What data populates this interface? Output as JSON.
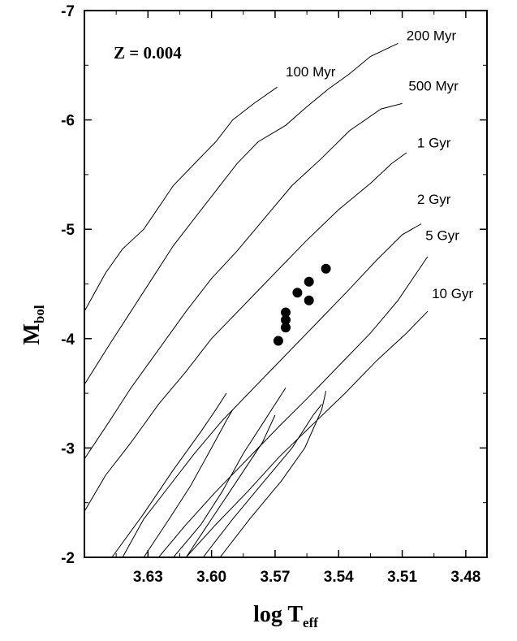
{
  "chart_data": {
    "type": "line",
    "title": "",
    "annotation": "Z = 0.004",
    "xlabel": {
      "main": "log T",
      "sub": "eff"
    },
    "ylabel": {
      "main": "M",
      "sub": "bol"
    },
    "xlim": [
      3.66,
      3.47
    ],
    "ylim": [
      -2,
      -7
    ],
    "x_ticks": [
      {
        "value": 3.63,
        "label": "3.63"
      },
      {
        "value": 3.6,
        "label": "3.60"
      },
      {
        "value": 3.57,
        "label": "3.57"
      },
      {
        "value": 3.54,
        "label": "3.54"
      },
      {
        "value": 3.51,
        "label": "3.51"
      },
      {
        "value": 3.48,
        "label": "3.48"
      }
    ],
    "y_ticks": [
      {
        "value": -2,
        "label": "-2"
      },
      {
        "value": -3,
        "label": "-3"
      },
      {
        "value": -4,
        "label": "-4"
      },
      {
        "value": -5,
        "label": "-5"
      },
      {
        "value": -6,
        "label": "-6"
      },
      {
        "value": -7,
        "label": "-7"
      }
    ],
    "series": [
      {
        "name": "100 Myr",
        "label": "100 Myr",
        "label_at": [
          3.565,
          -6.4
        ],
        "points": [
          [
            3.66,
            -4.25
          ],
          [
            3.65,
            -4.6
          ],
          [
            3.642,
            -4.82
          ],
          [
            3.632,
            -5.0
          ],
          [
            3.625,
            -5.2
          ],
          [
            3.618,
            -5.4
          ],
          [
            3.608,
            -5.6
          ],
          [
            3.598,
            -5.8
          ],
          [
            3.59,
            -6.0
          ],
          [
            3.58,
            -6.15
          ],
          [
            3.569,
            -6.3
          ]
        ]
      },
      {
        "name": "200 Myr",
        "label": "200 Myr",
        "label_at": [
          3.508,
          -6.73
        ],
        "points": [
          [
            3.66,
            -3.58
          ],
          [
            3.648,
            -3.95
          ],
          [
            3.638,
            -4.25
          ],
          [
            3.628,
            -4.55
          ],
          [
            3.618,
            -4.85
          ],
          [
            3.608,
            -5.1
          ],
          [
            3.598,
            -5.35
          ],
          [
            3.588,
            -5.6
          ],
          [
            3.578,
            -5.8
          ],
          [
            3.565,
            -5.95
          ],
          [
            3.555,
            -6.12
          ],
          [
            3.545,
            -6.28
          ],
          [
            3.535,
            -6.42
          ],
          [
            3.525,
            -6.58
          ],
          [
            3.512,
            -6.7
          ]
        ]
      },
      {
        "name": "500 Myr",
        "label": "500 Myr",
        "label_at": [
          3.507,
          -6.27
        ],
        "points": [
          [
            3.66,
            -2.9
          ],
          [
            3.648,
            -3.25
          ],
          [
            3.638,
            -3.55
          ],
          [
            3.625,
            -3.9
          ],
          [
            3.612,
            -4.25
          ],
          [
            3.6,
            -4.55
          ],
          [
            3.588,
            -4.8
          ],
          [
            3.575,
            -5.1
          ],
          [
            3.562,
            -5.4
          ],
          [
            3.548,
            -5.65
          ],
          [
            3.535,
            -5.9
          ],
          [
            3.52,
            -6.1
          ],
          [
            3.51,
            -6.15
          ]
        ]
      },
      {
        "name": "1 Gyr",
        "label": "1 Gyr",
        "label_at": [
          3.503,
          -5.75
        ],
        "points": [
          [
            3.66,
            -2.42
          ],
          [
            3.65,
            -2.75
          ],
          [
            3.638,
            -3.05
          ],
          [
            3.625,
            -3.4
          ],
          [
            3.612,
            -3.7
          ],
          [
            3.6,
            -4.0
          ],
          [
            3.585,
            -4.3
          ],
          [
            3.57,
            -4.6
          ],
          [
            3.555,
            -4.9
          ],
          [
            3.54,
            -5.18
          ],
          [
            3.525,
            -5.42
          ],
          [
            3.515,
            -5.6
          ],
          [
            3.508,
            -5.7
          ]
        ]
      },
      {
        "name": "2 Gyr",
        "label": "2 Gyr",
        "label_at": [
          3.503,
          -5.23
        ],
        "points": [
          [
            3.642,
            -2.0
          ],
          [
            3.632,
            -2.35
          ],
          [
            3.62,
            -2.65
          ],
          [
            3.608,
            -2.95
          ],
          [
            3.595,
            -3.25
          ],
          [
            3.58,
            -3.55
          ],
          [
            3.565,
            -3.85
          ],
          [
            3.55,
            -4.15
          ],
          [
            3.535,
            -4.45
          ],
          [
            3.522,
            -4.72
          ],
          [
            3.51,
            -4.95
          ],
          [
            3.501,
            -5.05
          ]
        ]
      },
      {
        "name": "5 Gyr",
        "label": "5 Gyr",
        "label_at": [
          3.499,
          -4.9
        ],
        "points": [
          [
            3.625,
            -2.0
          ],
          [
            3.612,
            -2.3
          ],
          [
            3.598,
            -2.6
          ],
          [
            3.583,
            -2.9
          ],
          [
            3.568,
            -3.2
          ],
          [
            3.555,
            -3.45
          ],
          [
            3.54,
            -3.75
          ],
          [
            3.525,
            -4.05
          ],
          [
            3.512,
            -4.35
          ],
          [
            3.498,
            -4.75
          ]
        ]
      },
      {
        "name": "10 Gyr",
        "label": "10 Gyr",
        "label_at": [
          3.496,
          -4.37
        ],
        "points": [
          [
            3.612,
            -2.0
          ],
          [
            3.598,
            -2.3
          ],
          [
            3.583,
            -2.6
          ],
          [
            3.568,
            -2.92
          ],
          [
            3.552,
            -3.22
          ],
          [
            3.537,
            -3.5
          ],
          [
            3.522,
            -3.8
          ],
          [
            3.508,
            -4.05
          ],
          [
            3.498,
            -4.25
          ]
        ]
      }
    ],
    "rgb_branches": [
      {
        "points": [
          [
            3.647,
            -2.0
          ],
          [
            3.632,
            -2.4
          ],
          [
            3.618,
            -2.8
          ],
          [
            3.605,
            -3.15
          ],
          [
            3.598,
            -3.35
          ],
          [
            3.593,
            -3.5
          ]
        ]
      },
      {
        "points": [
          [
            3.632,
            -2.0
          ],
          [
            3.62,
            -2.35
          ],
          [
            3.61,
            -2.65
          ],
          [
            3.6,
            -3.0
          ],
          [
            3.593,
            -3.25
          ],
          [
            3.59,
            -3.35
          ]
        ]
      },
      {
        "points": [
          [
            3.618,
            -2.0
          ],
          [
            3.605,
            -2.3
          ],
          [
            3.595,
            -2.6
          ],
          [
            3.585,
            -2.95
          ],
          [
            3.575,
            -3.25
          ],
          [
            3.565,
            -3.55
          ]
        ]
      },
      {
        "points": [
          [
            3.612,
            -2.0
          ],
          [
            3.6,
            -2.35
          ],
          [
            3.588,
            -2.7
          ],
          [
            3.576,
            -3.05
          ],
          [
            3.57,
            -3.3
          ]
        ]
      },
      {
        "points": [
          [
            3.604,
            -2.0
          ],
          [
            3.59,
            -2.35
          ],
          [
            3.575,
            -2.7
          ],
          [
            3.562,
            -3.0
          ],
          [
            3.552,
            -3.3
          ],
          [
            3.548,
            -3.4
          ]
        ]
      },
      {
        "points": [
          [
            3.596,
            -2.0
          ],
          [
            3.582,
            -2.35
          ],
          [
            3.567,
            -2.7
          ],
          [
            3.556,
            -3.0
          ],
          [
            3.548,
            -3.35
          ],
          [
            3.546,
            -3.52
          ]
        ]
      }
    ],
    "observed_points": [
      {
        "x": 3.5685,
        "y": -3.98
      },
      {
        "x": 3.565,
        "y": -4.1
      },
      {
        "x": 3.565,
        "y": -4.17
      },
      {
        "x": 3.565,
        "y": -4.24
      },
      {
        "x": 3.5595,
        "y": -4.42
      },
      {
        "x": 3.554,
        "y": -4.35
      },
      {
        "x": 3.554,
        "y": -4.52
      },
      {
        "x": 3.546,
        "y": -4.64
      }
    ],
    "grid": false,
    "legend": "none"
  }
}
